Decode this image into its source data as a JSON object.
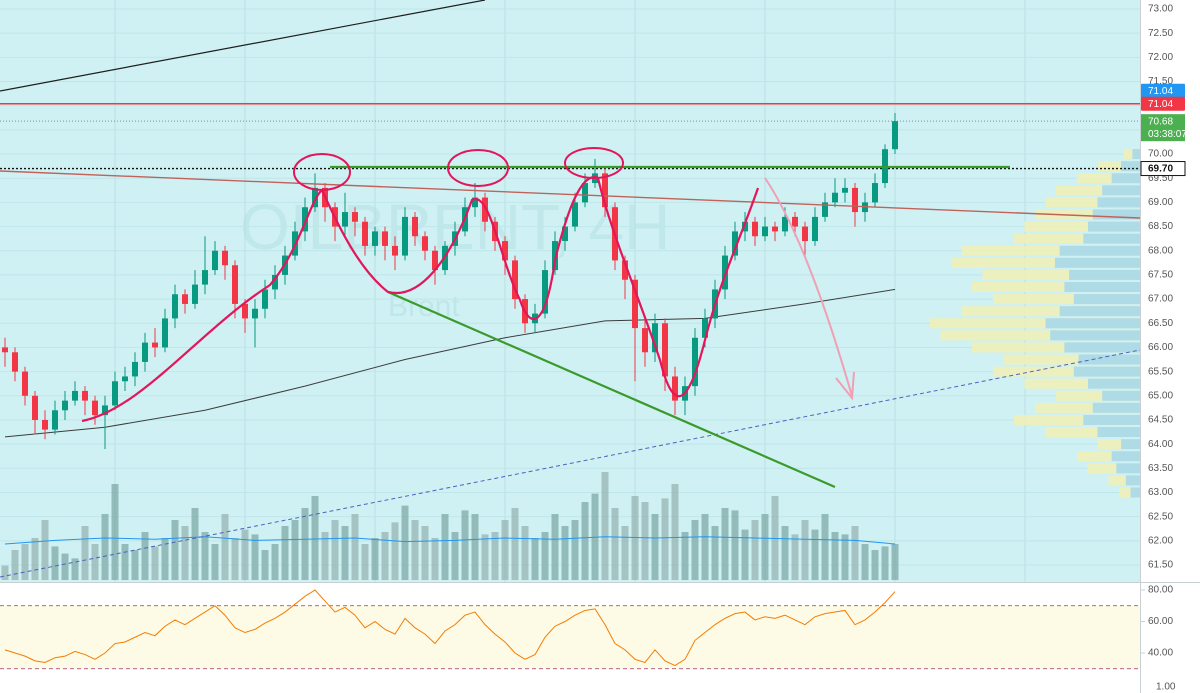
{
  "chart_data": {
    "type": "candlestick",
    "watermark": "OILBRENT, 4H",
    "watermark_sub": "Brent",
    "ylim": [
      61.3,
      73.2
    ],
    "yticks": [
      {
        "value": 73,
        "label": "73.00"
      },
      {
        "value": 72.5,
        "label": "72.50"
      },
      {
        "value": 72,
        "label": "72.00"
      },
      {
        "value": 71.5,
        "label": "71.50"
      },
      {
        "value": 71,
        "label": "71.00"
      },
      {
        "value": 70.5,
        "label": "70.50"
      },
      {
        "value": 70,
        "label": "70.00"
      },
      {
        "value": 69.5,
        "label": "69.50"
      },
      {
        "value": 69,
        "label": "69.00"
      },
      {
        "value": 68.5,
        "label": "68.50"
      },
      {
        "value": 68,
        "label": "68.00"
      },
      {
        "value": 67.5,
        "label": "67.50"
      },
      {
        "value": 67,
        "label": "67.00"
      },
      {
        "value": 66.5,
        "label": "66.50"
      },
      {
        "value": 66,
        "label": "66.00"
      },
      {
        "value": 65.5,
        "label": "65.50"
      },
      {
        "value": 65,
        "label": "65.00"
      },
      {
        "value": 64.5,
        "label": "64.50"
      },
      {
        "value": 64,
        "label": "64.00"
      },
      {
        "value": 63.5,
        "label": "63.50"
      },
      {
        "value": 63,
        "label": "63.00"
      },
      {
        "value": 62.5,
        "label": "62.50"
      },
      {
        "value": 62,
        "label": "62.00"
      },
      {
        "value": 61.5,
        "label": "61.50"
      }
    ],
    "up_color": "#089981",
    "down_color": "#f23645",
    "open": [
      66.0,
      65.9,
      65.5,
      65.0,
      64.5,
      64.3,
      64.7,
      64.9,
      65.1,
      64.9,
      64.6,
      64.8,
      65.3,
      65.4,
      65.7,
      66.1,
      66.0,
      66.6,
      67.1,
      66.9,
      67.3,
      67.6,
      68.0,
      67.7,
      66.9,
      66.6,
      66.8,
      67.2,
      67.5,
      67.9,
      68.4,
      68.9,
      69.3,
      68.9,
      68.5,
      68.8,
      68.6,
      68.1,
      68.4,
      68.1,
      67.9,
      68.7,
      68.3,
      68.0,
      67.6,
      68.1,
      68.4,
      68.9,
      69.1,
      68.6,
      68.2,
      67.8,
      67.0,
      66.5,
      66.7,
      67.6,
      68.2,
      68.5,
      69.0,
      69.4,
      69.6,
      68.9,
      67.8,
      67.4,
      66.4,
      65.9,
      66.5,
      65.4,
      64.9,
      65.2,
      66.2,
      66.6,
      67.2,
      67.9,
      68.4,
      68.6,
      68.3,
      68.5,
      68.4,
      68.7,
      68.5,
      68.2,
      68.7,
      69.0,
      69.2,
      69.3,
      68.8,
      69.0,
      69.4,
      70.1
    ],
    "high": [
      66.2,
      66.0,
      65.6,
      65.1,
      64.7,
      64.9,
      65.1,
      65.3,
      65.2,
      65.0,
      65.0,
      65.5,
      65.6,
      65.9,
      66.3,
      66.4,
      66.8,
      67.3,
      67.2,
      67.6,
      68.3,
      68.2,
      68.1,
      67.8,
      67.0,
      67.0,
      67.4,
      67.7,
      68.1,
      68.6,
      69.1,
      69.6,
      69.4,
      69.0,
      69.2,
      68.9,
      68.7,
      68.5,
      68.5,
      68.3,
      68.9,
      68.8,
      68.4,
      68.1,
      68.2,
      68.6,
      69.1,
      69.4,
      69.2,
      68.7,
      68.3,
      67.9,
      67.1,
      66.9,
      67.8,
      68.4,
      68.7,
      69.2,
      69.6,
      69.9,
      69.7,
      69.0,
      67.9,
      67.5,
      66.6,
      66.7,
      66.6,
      65.6,
      65.4,
      66.4,
      66.8,
      67.4,
      68.1,
      68.6,
      68.8,
      68.7,
      68.7,
      68.6,
      68.9,
      68.8,
      68.6,
      68.9,
      69.2,
      69.5,
      69.5,
      69.4,
      69.2,
      69.6,
      70.2,
      70.85
    ],
    "low": [
      65.6,
      65.3,
      64.8,
      64.2,
      64.1,
      64.2,
      64.5,
      64.8,
      64.6,
      64.4,
      63.9,
      64.7,
      65.1,
      65.2,
      65.5,
      65.8,
      65.9,
      66.4,
      66.7,
      66.8,
      67.1,
      67.5,
      67.4,
      66.6,
      66.3,
      66.0,
      66.6,
      67.0,
      67.3,
      67.8,
      68.2,
      68.8,
      68.6,
      68.2,
      68.3,
      68.3,
      67.9,
      67.9,
      67.8,
      67.6,
      67.8,
      68.1,
      67.8,
      67.3,
      67.5,
      67.9,
      68.3,
      68.7,
      68.4,
      68.0,
      67.5,
      66.8,
      66.3,
      66.3,
      66.6,
      67.5,
      68.0,
      68.4,
      68.9,
      69.3,
      68.7,
      67.6,
      67.0,
      65.3,
      65.6,
      65.7,
      65.1,
      64.6,
      64.6,
      65.0,
      66.0,
      66.4,
      67.0,
      67.8,
      68.2,
      68.1,
      68.2,
      68.2,
      68.3,
      68.3,
      67.9,
      68.1,
      68.6,
      68.9,
      69.0,
      68.5,
      68.6,
      68.9,
      69.3,
      70.0
    ],
    "close": [
      65.9,
      65.5,
      65.0,
      64.5,
      64.3,
      64.7,
      64.9,
      65.1,
      64.9,
      64.6,
      64.8,
      65.3,
      65.4,
      65.7,
      66.1,
      66.0,
      66.6,
      67.1,
      66.9,
      67.3,
      67.6,
      68.0,
      67.7,
      66.9,
      66.6,
      66.8,
      67.2,
      67.5,
      67.9,
      68.4,
      68.9,
      69.3,
      68.9,
      68.5,
      68.8,
      68.6,
      68.1,
      68.4,
      68.1,
      67.9,
      68.7,
      68.3,
      68.0,
      67.6,
      68.1,
      68.4,
      68.9,
      69.1,
      68.6,
      68.2,
      67.8,
      67.0,
      66.5,
      66.7,
      67.6,
      68.2,
      68.5,
      69.0,
      69.4,
      69.6,
      68.9,
      67.8,
      67.4,
      66.4,
      65.9,
      66.5,
      65.4,
      64.9,
      65.2,
      66.2,
      66.6,
      67.2,
      67.9,
      68.4,
      68.6,
      68.3,
      68.5,
      68.4,
      68.7,
      68.5,
      68.2,
      68.7,
      69.0,
      69.2,
      69.3,
      68.8,
      69.0,
      69.4,
      70.1,
      70.68
    ],
    "volume": [
      12,
      25,
      30,
      35,
      50,
      28,
      22,
      18,
      45,
      30,
      55,
      80,
      30,
      25,
      40,
      28,
      35,
      50,
      45,
      60,
      40,
      30,
      55,
      35,
      42,
      38,
      25,
      30,
      45,
      50,
      60,
      70,
      40,
      50,
      45,
      55,
      30,
      35,
      40,
      48,
      62,
      50,
      45,
      35,
      55,
      40,
      58,
      55,
      38,
      40,
      50,
      60,
      45,
      35,
      40,
      55,
      45,
      50,
      65,
      72,
      90,
      60,
      45,
      70,
      65,
      55,
      68,
      80,
      40,
      50,
      55,
      45,
      60,
      58,
      42,
      50,
      55,
      70,
      45,
      38,
      50,
      42,
      55,
      40,
      38,
      45,
      30,
      25,
      28,
      30
    ],
    "volume_ma": {
      "index": [
        0,
        5,
        10,
        15,
        20,
        25,
        30,
        35,
        40,
        45,
        50,
        55,
        60,
        65,
        70,
        75,
        80,
        85,
        89
      ],
      "values": [
        30,
        33,
        35,
        34,
        36,
        33,
        34,
        35,
        32,
        33,
        35,
        34,
        36,
        35,
        36,
        35,
        34,
        33,
        30
      ],
      "color": "#2196f3"
    },
    "ma": {
      "index": [
        0,
        10,
        20,
        30,
        40,
        50,
        60,
        70,
        80,
        89
      ],
      "values": [
        64.15,
        64.35,
        64.7,
        65.2,
        65.75,
        66.2,
        66.55,
        66.6,
        66.9,
        67.2
      ],
      "color": "#3c3c3c"
    },
    "profile": {
      "prices": [
        63.0,
        63.25,
        63.5,
        63.75,
        64.0,
        64.25,
        64.5,
        64.75,
        65.0,
        65.25,
        65.5,
        65.75,
        66.0,
        66.25,
        66.5,
        66.75,
        67.0,
        67.25,
        67.5,
        67.75,
        68.0,
        68.25,
        68.5,
        68.75,
        69.0,
        69.25,
        69.5,
        69.75,
        70.0
      ],
      "values": [
        10,
        15,
        25,
        30,
        20,
        45,
        60,
        50,
        40,
        55,
        70,
        65,
        80,
        95,
        100,
        85,
        70,
        80,
        75,
        90,
        85,
        60,
        55,
        50,
        45,
        40,
        30,
        20,
        8
      ]
    },
    "red_line": 71.04,
    "alert": 71.04,
    "last_price": 70.68,
    "countdown": "03:38:07",
    "neckline": {
      "value": 69.7,
      "label": "69.70"
    },
    "rsi": {
      "values": [
        42,
        40,
        38,
        35,
        34,
        37,
        38,
        41,
        39,
        36,
        40,
        46,
        47,
        50,
        53,
        51,
        57,
        61,
        58,
        62,
        66,
        70,
        64,
        56,
        53,
        55,
        59,
        62,
        66,
        71,
        76,
        80,
        73,
        66,
        69,
        64,
        56,
        60,
        55,
        52,
        62,
        56,
        52,
        46,
        54,
        58,
        64,
        66,
        58,
        52,
        47,
        40,
        36,
        39,
        50,
        57,
        60,
        64,
        67,
        68,
        58,
        46,
        42,
        36,
        34,
        42,
        35,
        32,
        36,
        48,
        53,
        58,
        62,
        65,
        66,
        61,
        63,
        62,
        64,
        61,
        58,
        63,
        65,
        66,
        67,
        58,
        61,
        66,
        72,
        79
      ],
      "color": "#f57c00",
      "levels": [
        70,
        30
      ],
      "yticks": [
        {
          "value": 80,
          "label": "80.00"
        },
        {
          "value": 60,
          "label": "60.00"
        },
        {
          "value": 40,
          "label": "40.00"
        }
      ]
    },
    "bottom_label": {
      "value": 1,
      "label": "1.00"
    }
  }
}
